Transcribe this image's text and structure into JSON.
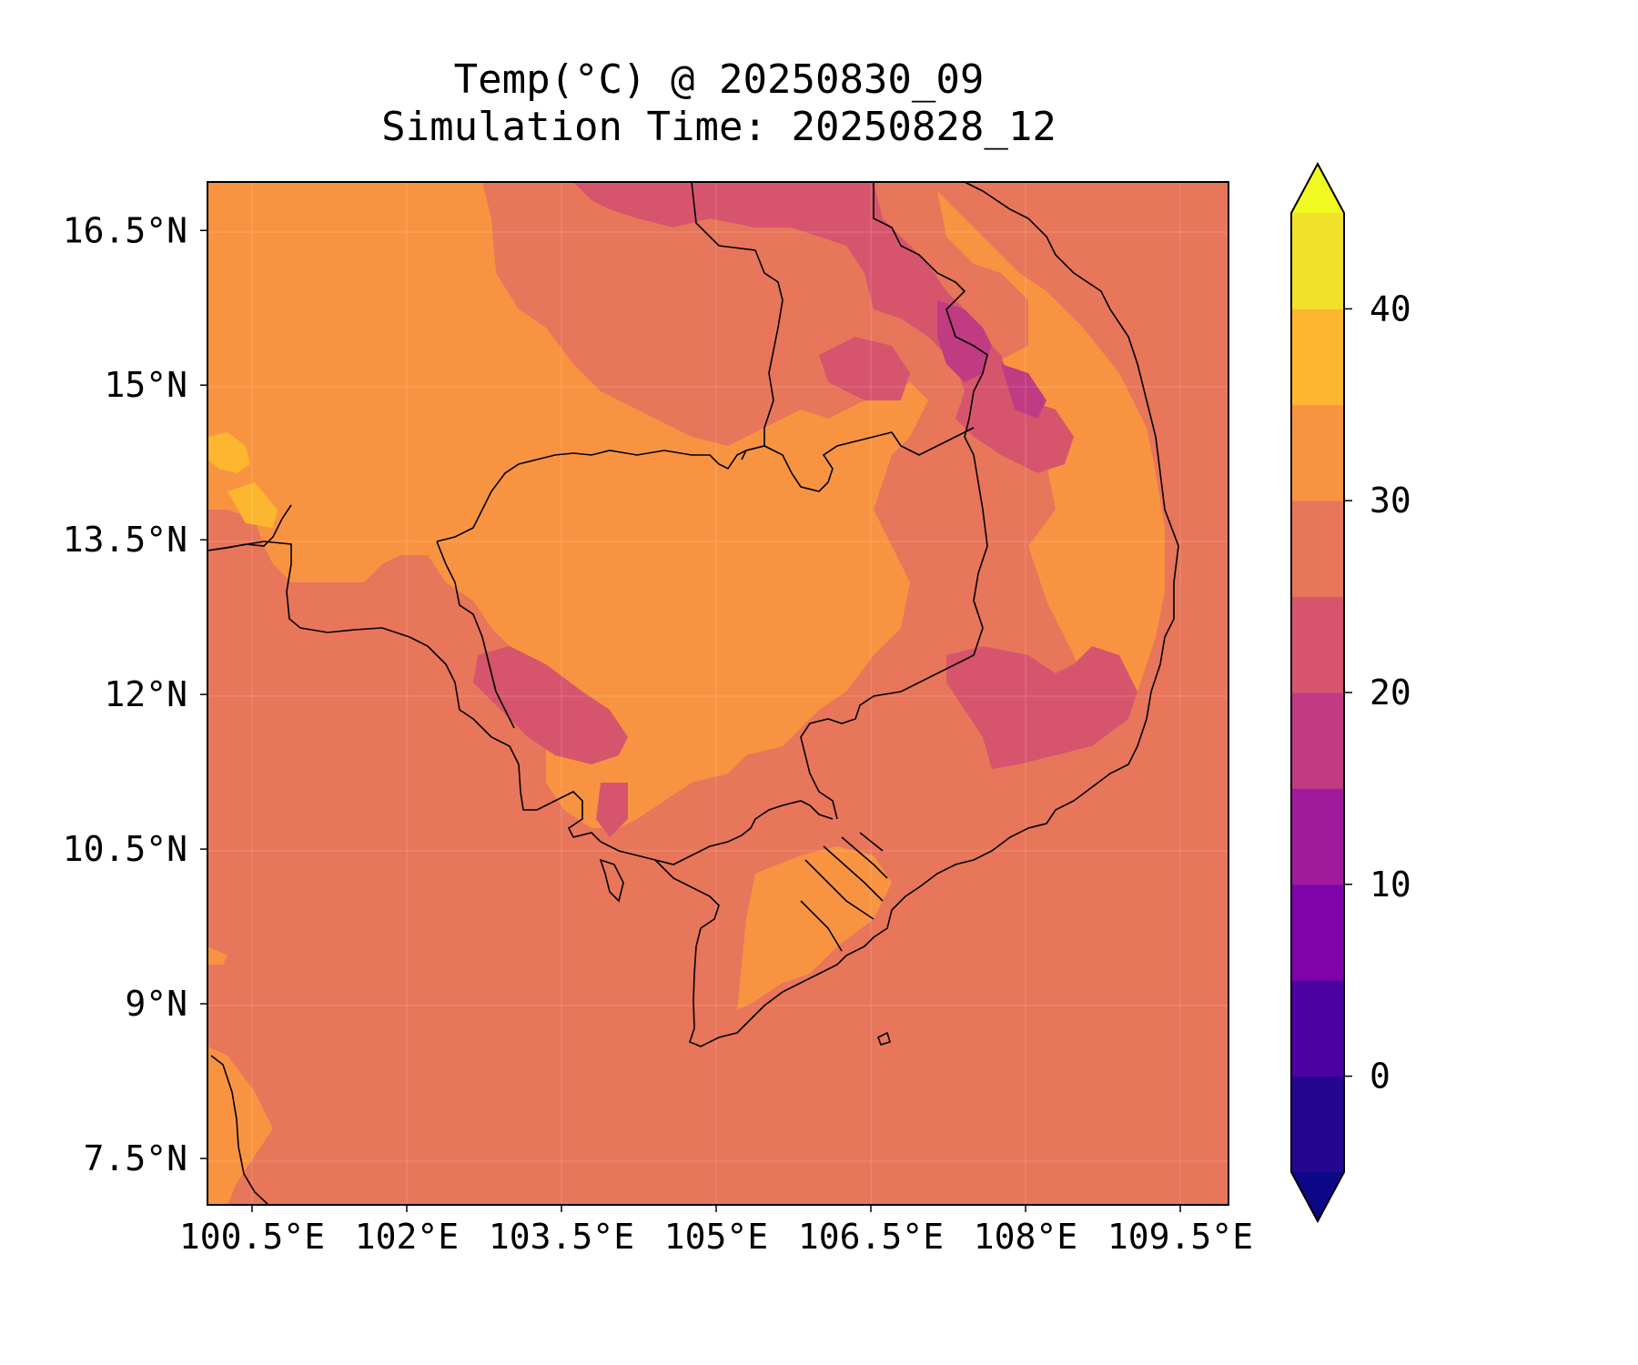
{
  "title": {
    "line1": "Temp(°C) @ 20250830_09",
    "line2": "Simulation Time: 20250828_12"
  },
  "map": {
    "x_ticks": [
      {
        "value": 100.5,
        "label": "100.5°E"
      },
      {
        "value": 102,
        "label": "102°E"
      },
      {
        "value": 103.5,
        "label": "103.5°E"
      },
      {
        "value": 105,
        "label": "105°E"
      },
      {
        "value": 106.5,
        "label": "106.5°E"
      },
      {
        "value": 108,
        "label": "108°E"
      },
      {
        "value": 109.5,
        "label": "109.5°E"
      }
    ],
    "y_ticks": [
      {
        "value": 16.5,
        "label": "16.5°N"
      },
      {
        "value": 15,
        "label": "15°N"
      },
      {
        "value": 13.5,
        "label": "13.5°N"
      },
      {
        "value": 12,
        "label": "12°N"
      },
      {
        "value": 10.5,
        "label": "10.5°N"
      },
      {
        "value": 9,
        "label": "9°N"
      },
      {
        "value": 7.5,
        "label": "7.5°N"
      }
    ],
    "lon_range": [
      100.5,
      110.4
    ],
    "lat_range": [
      7.05,
      16.97
    ],
    "gridlines": true
  },
  "colorbar": {
    "range": [
      -5,
      45
    ],
    "extend": "both",
    "bands": [
      {
        "from": -5,
        "to": 0,
        "color": "#240691"
      },
      {
        "from": 0,
        "to": 5,
        "color": "#4c02a1"
      },
      {
        "from": 5,
        "to": 10,
        "color": "#7e03a8"
      },
      {
        "from": 10,
        "to": 15,
        "color": "#a01a9c"
      },
      {
        "from": 15,
        "to": 20,
        "color": "#c13b82"
      },
      {
        "from": 20,
        "to": 25,
        "color": "#d6556d"
      },
      {
        "from": 25,
        "to": 30,
        "color": "#e8765a"
      },
      {
        "from": 30,
        "to": 35,
        "color": "#f89441"
      },
      {
        "from": 35,
        "to": 40,
        "color": "#fdb62f"
      },
      {
        "from": 40,
        "to": 45,
        "color": "#f2e12b"
      }
    ],
    "extend_low_color": "#0d0887",
    "extend_high_color": "#f0f921",
    "ticks": [
      {
        "value": 0,
        "label": "0"
      },
      {
        "value": 10,
        "label": "10"
      },
      {
        "value": 20,
        "label": "20"
      },
      {
        "value": 30,
        "label": "30"
      },
      {
        "value": 40,
        "label": "40"
      }
    ]
  }
}
